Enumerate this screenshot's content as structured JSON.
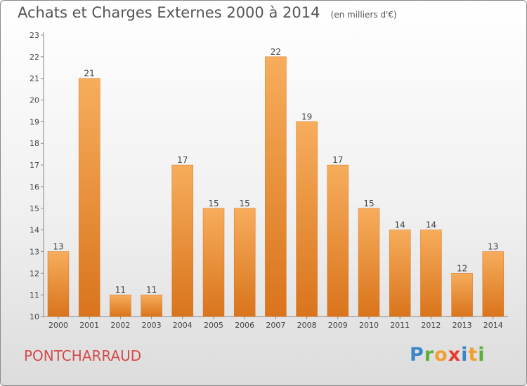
{
  "chart_data": {
    "type": "bar",
    "title": "Achats et Charges Externes 2000 à 2014",
    "subtitle": "(en milliers d'€)",
    "categories": [
      "2000",
      "2001",
      "2002",
      "2003",
      "2004",
      "2005",
      "2006",
      "2007",
      "2008",
      "2009",
      "2010",
      "2011",
      "2012",
      "2013",
      "2014"
    ],
    "values": [
      13,
      21,
      11,
      11,
      17,
      15,
      15,
      22,
      19,
      17,
      15,
      14,
      14,
      12,
      13
    ],
    "ylim": [
      10,
      23
    ],
    "yticks": [
      10,
      11,
      12,
      13,
      14,
      15,
      16,
      17,
      18,
      19,
      20,
      21,
      22,
      23
    ],
    "grid": false,
    "bar_color": "#f2922f",
    "bar_color_light": "#f7ad5c",
    "bar_color_dark": "#d9741c"
  },
  "place_name": "PONTCHARRAUD",
  "logo": {
    "text": "Proxiti"
  }
}
